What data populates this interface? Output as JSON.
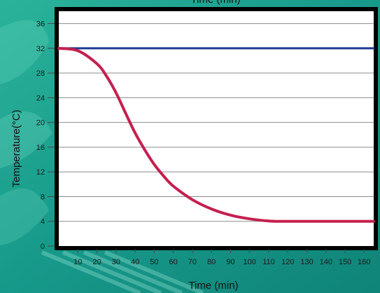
{
  "chart_data": {
    "type": "line",
    "top_title": "Time (min)",
    "xlabel": "Time (min)",
    "ylabel": "Temperature(°C)",
    "xlim": [
      0,
      165
    ],
    "ylim": [
      0,
      38
    ],
    "x_ticks": [
      10,
      20,
      30,
      40,
      50,
      60,
      70,
      80,
      90,
      100,
      110,
      120,
      130,
      140,
      150,
      160
    ],
    "x_tick_labels": [
      "10",
      "20",
      "30",
      "40",
      "50",
      "60",
      "70",
      "80",
      "90",
      "100",
      "110",
      "120",
      "130",
      "140",
      "150",
      "160"
    ],
    "y_ticks": [
      0,
      4,
      8,
      12,
      16,
      20,
      24,
      28,
      32,
      36
    ],
    "y_tick_labels": [
      "0",
      "4",
      "8",
      "12",
      "16",
      "20",
      "24",
      "28",
      "32",
      "36"
    ],
    "grid": true,
    "legend": "none",
    "series": [
      {
        "color": "#1f3a93",
        "x": [
          0,
          165
        ],
        "y": [
          32,
          32
        ]
      },
      {
        "color": "#c4204f",
        "x": [
          0,
          10,
          20,
          25,
          30,
          35,
          40,
          45,
          50,
          55,
          60,
          70,
          80,
          90,
          100,
          110,
          115,
          120,
          140,
          165
        ],
        "y": [
          32,
          31.6,
          29.5,
          27.5,
          24.8,
          21.5,
          18.3,
          15.6,
          13.2,
          11.3,
          9.7,
          7.5,
          6.0,
          5.0,
          4.4,
          4.05,
          4.0,
          4.0,
          4.0,
          4.0
        ]
      }
    ]
  }
}
